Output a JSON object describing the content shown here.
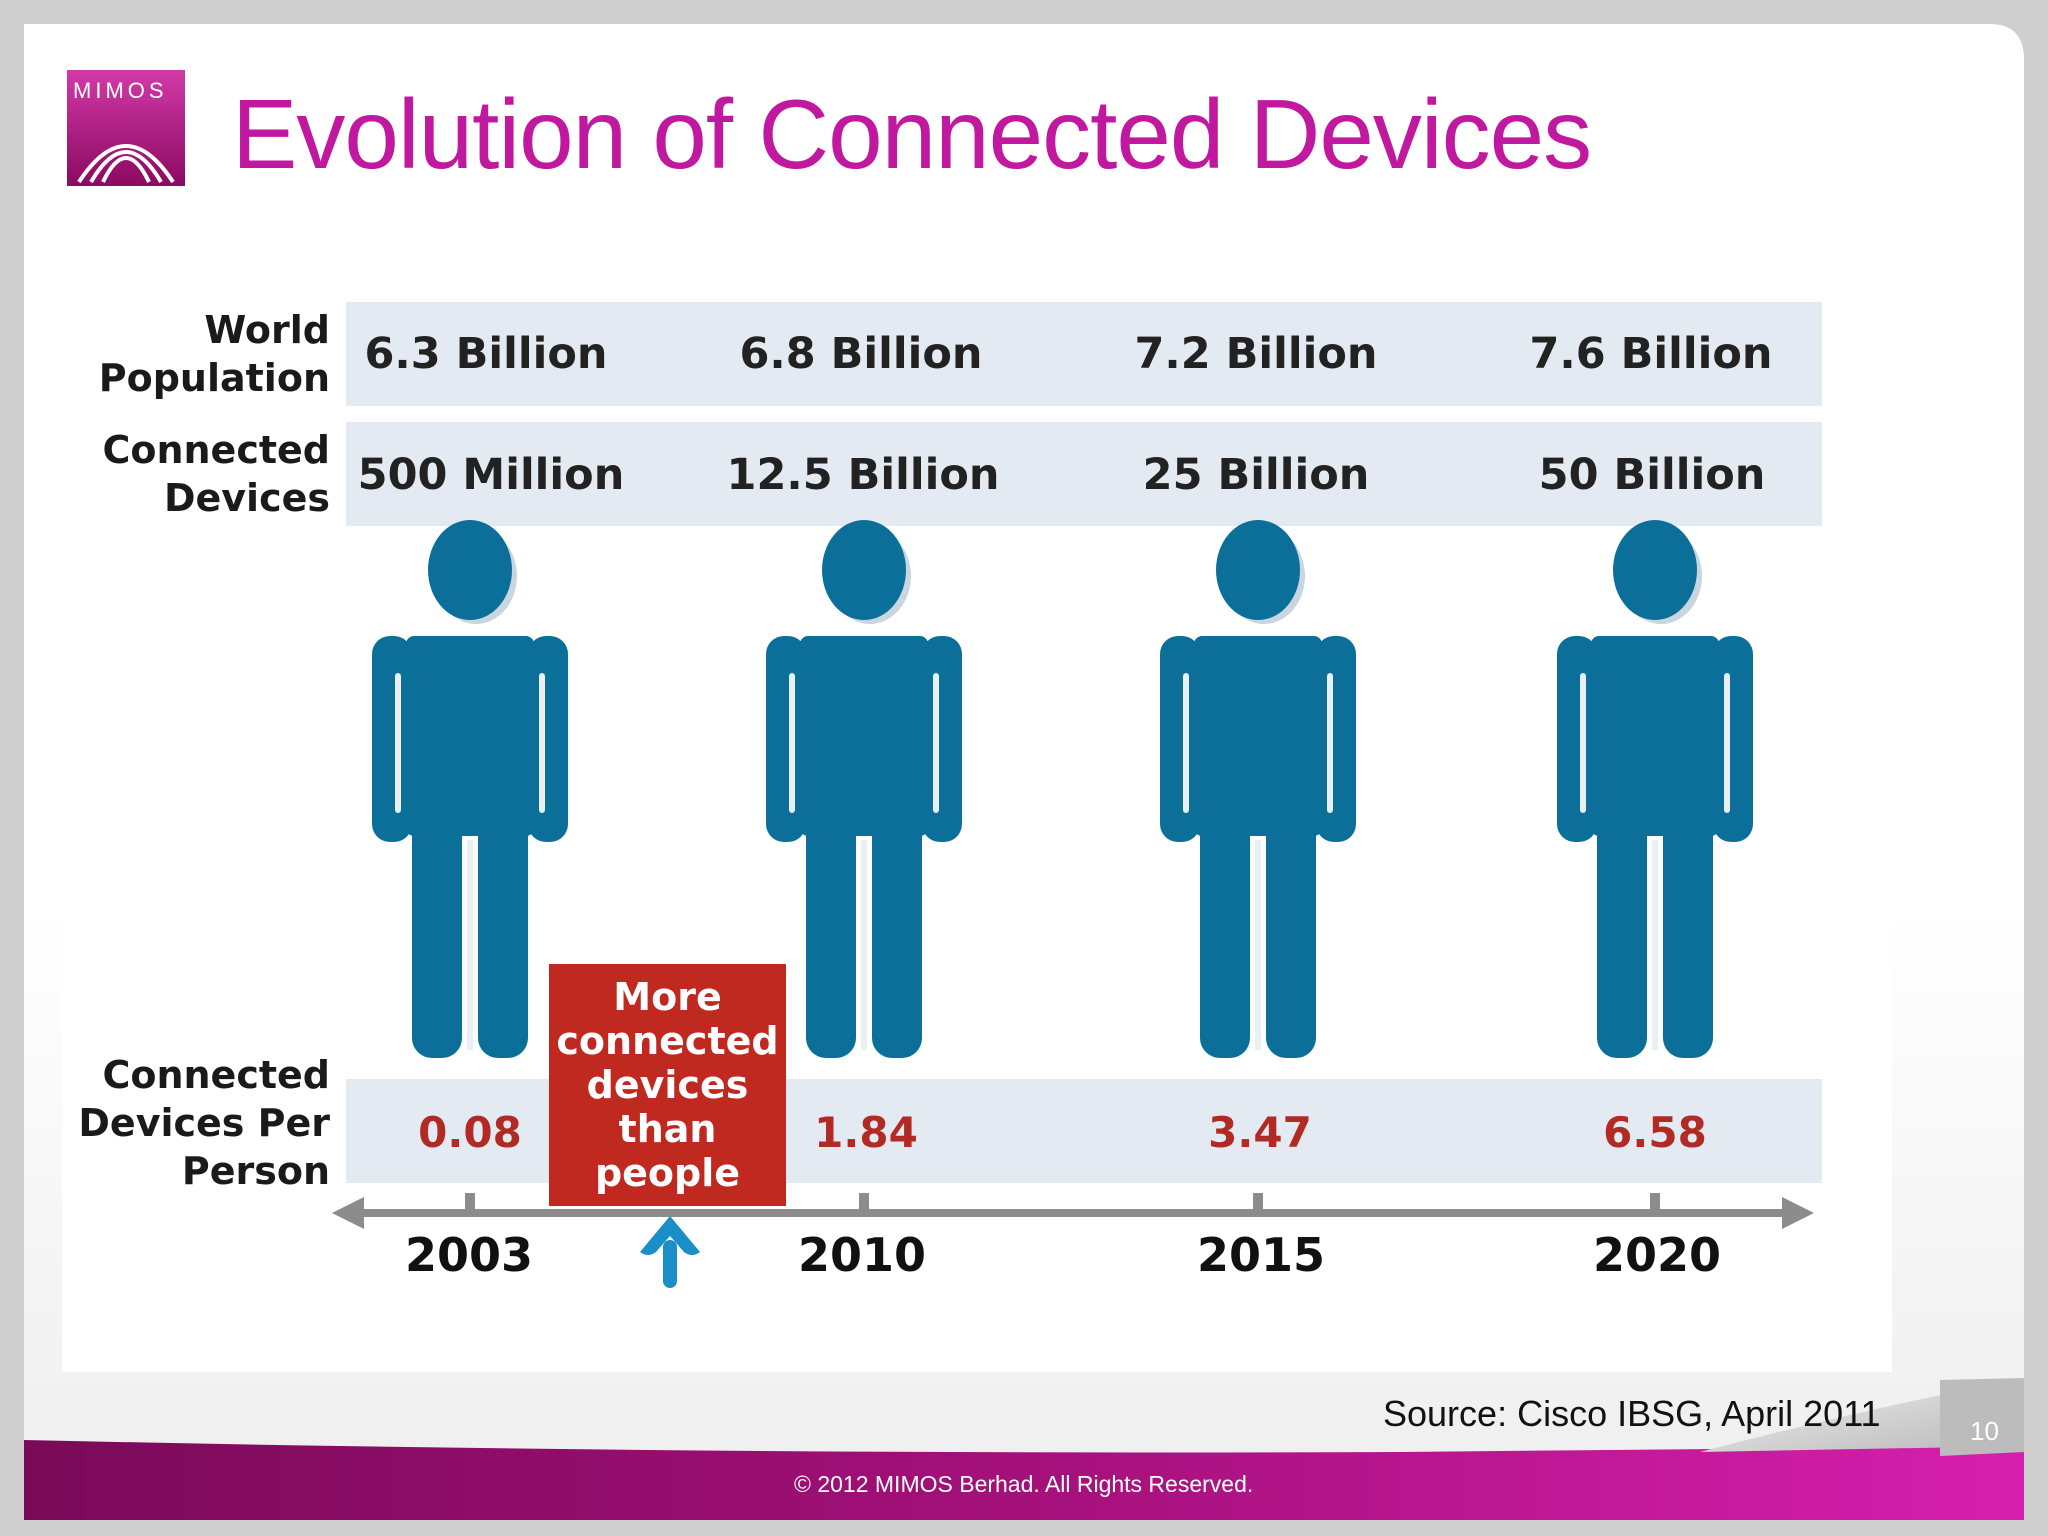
{
  "slide": {
    "logo_text": "MIMOS",
    "title": "Evolution of Connected Devices",
    "source": "Source: Cisco IBSG, April 2011",
    "page_number": "10",
    "copyright": "© 2012 MIMOS Berhad. All Rights Reserved."
  },
  "table": {
    "row_labels": {
      "population": "World Population",
      "devices": "Connected Devices",
      "per_person": "Connected Devices Per Person"
    },
    "columns": [
      {
        "year": "2003",
        "population": "6.3 Billion",
        "devices": "500 Million",
        "per_person": "0.08"
      },
      {
        "year": "2010",
        "population": "6.8 Billion",
        "devices": "12.5 Billion",
        "per_person": "1.84"
      },
      {
        "year": "2015",
        "population": "7.2 Billion",
        "devices": "25 Billion",
        "per_person": "3.47"
      },
      {
        "year": "2020",
        "population": "7.6 Billion",
        "devices": "50 Billion",
        "per_person": "6.58"
      }
    ],
    "callout": "More connected devices than people"
  },
  "colors": {
    "title": "#c0189e",
    "figure": "#0b6f9a",
    "band": "#e3eaf1",
    "callout": "#c0291f",
    "ratio_text": "#b22a24",
    "arrow": "#1a8fc7",
    "footer_bar": "#9a0a6e"
  },
  "icons": {
    "person": "person-figure-icon",
    "arrow": "arrow-up-icon",
    "logo": "mimos-arch-logo-icon"
  }
}
